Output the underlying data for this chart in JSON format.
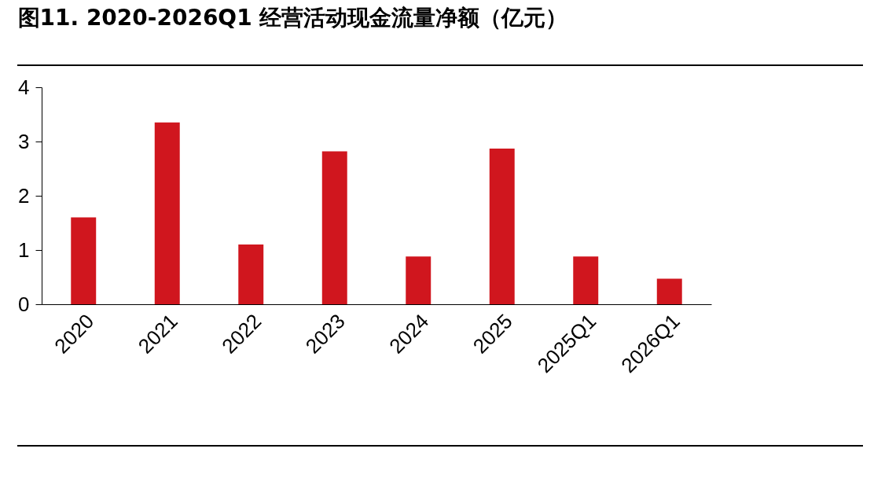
{
  "chart_data": {
    "type": "bar",
    "title": "图11. 2020-2026Q1 经营活动现金流量净额（亿元）",
    "categories": [
      "2020",
      "2021",
      "2022",
      "2023",
      "2024",
      "2025",
      "2025Q1",
      "2026Q1"
    ],
    "values": [
      1.6,
      3.35,
      1.1,
      2.82,
      0.88,
      2.87,
      0.88,
      0.47
    ],
    "color": "#d0161e",
    "ylim": [
      0,
      4
    ],
    "yticks": [
      0,
      1,
      2,
      3,
      4
    ],
    "grid": false
  }
}
